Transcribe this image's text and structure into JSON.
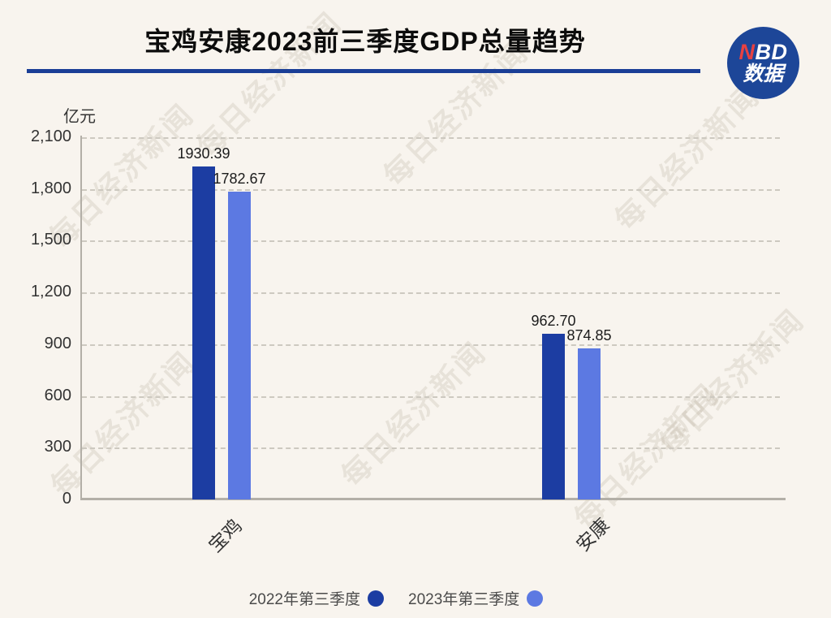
{
  "header": {
    "title": "宝鸡安康2023前三季度GDP总量趋势",
    "logo": {
      "top_red": "N",
      "top_white": "BD",
      "bottom": "数据"
    }
  },
  "watermark": {
    "text": "每日经济新闻"
  },
  "chart_data": {
    "type": "bar",
    "title": "宝鸡安康2023前三季度GDP总量趋势",
    "unit_label": "亿元",
    "categories": [
      "宝鸡",
      "安康"
    ],
    "series": [
      {
        "name": "2022年第三季度",
        "color": "#1c3da2",
        "values": [
          1930.39,
          962.7
        ]
      },
      {
        "name": "2023年第三季度",
        "color": "#5c79e2",
        "values": [
          1782.67,
          874.85
        ]
      }
    ],
    "value_labels": [
      [
        "1930.39",
        "962.70"
      ],
      [
        "1782.67",
        "874.85"
      ]
    ],
    "ylim": [
      0,
      2100
    ],
    "ytick_step": 300,
    "yticks": [
      "2,100",
      "1,800",
      "1,500",
      "1,200",
      "900",
      "600",
      "300",
      "0"
    ],
    "grid": "horizontal-dashed",
    "legend_position": "bottom"
  },
  "colors": {
    "background": "#f8f4ee",
    "title_underline": "#1a3e96",
    "logo_circle": "#1d4698",
    "logo_red": "#e84141",
    "axis": "#b3afa7",
    "gridline": "#cdc9c0",
    "series_dark": "#1c3da2",
    "series_light": "#5c79e2"
  }
}
